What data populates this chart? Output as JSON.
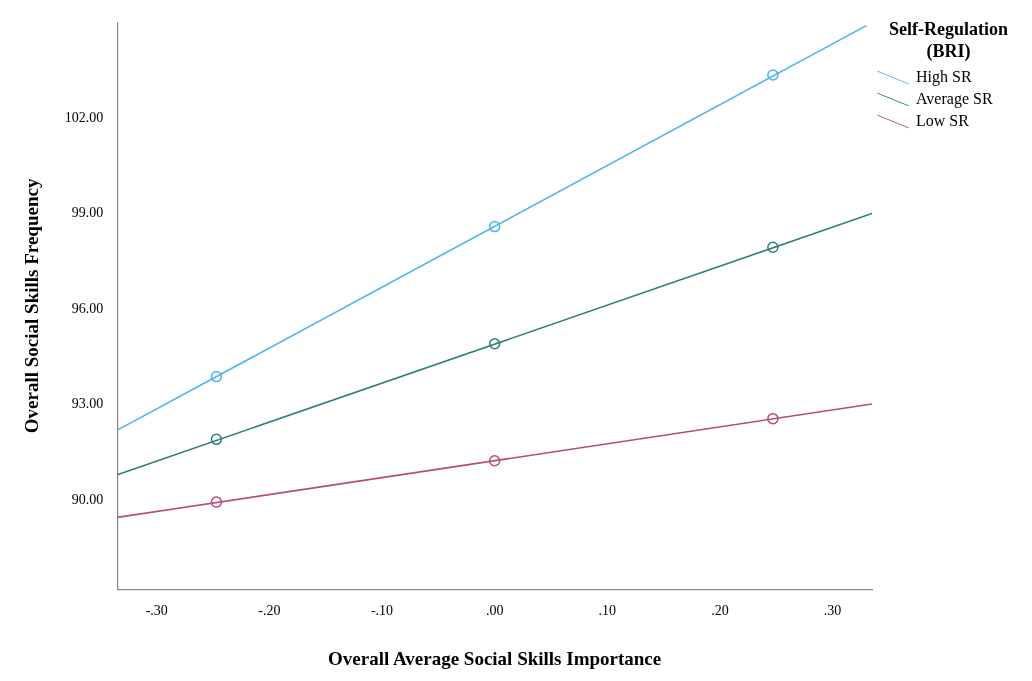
{
  "chart_data": {
    "type": "line",
    "xlabel": "Overall Average Social Skills Importance",
    "ylabel": "Overall Social Skills Frequency",
    "legend_title": "Self-Regulation (BRI)",
    "legend": "top right",
    "grid": false,
    "line_style": "solid",
    "xlim": [
      -0.335,
      0.335
    ],
    "xticks": [
      {
        "value": -0.3,
        "label": "-.30"
      },
      {
        "value": -0.2,
        "label": "-.20"
      },
      {
        "value": -0.1,
        "label": "-.10"
      },
      {
        "value": 0,
        "label": ".00"
      },
      {
        "value": 0.1,
        "label": ".10"
      },
      {
        "value": 0.2,
        "label": ".20"
      },
      {
        "value": 0.3,
        "label": ".30"
      }
    ],
    "ylim": [
      87.2,
      105
    ],
    "yticks": [
      {
        "value": 90,
        "label": "90.00"
      },
      {
        "value": 93,
        "label": "93.00"
      },
      {
        "value": 96,
        "label": "96.00"
      },
      {
        "value": 99,
        "label": "99.00"
      },
      {
        "value": 102,
        "label": "102.00"
      }
    ],
    "series": [
      {
        "name": "High SR",
        "marker": "none",
        "color": "#4db3f0",
        "x": [
          -0.335,
          0.33
        ],
        "values": [
          92.2,
          104.9
        ]
      },
      {
        "name": "Average SR",
        "marker": "none",
        "color": "#2e7d7a",
        "x": [
          -0.335,
          0.335
        ],
        "values": [
          90.8,
          99.0
        ]
      },
      {
        "name": "Low SR",
        "marker": "none",
        "color": "#b84a7a",
        "x": [
          -0.335,
          0.335
        ],
        "values": [
          89.46,
          93.02
        ]
      },
      {
        "type": "scatter",
        "marker": "circle",
        "color": "#4db3f0",
        "x": [
          -0.247,
          0,
          0.247
        ],
        "values": [
          93.88,
          98.59,
          103.35
        ]
      },
      {
        "type": "scatter",
        "marker": "circle",
        "color": "#2e7d7a",
        "x": [
          -0.247,
          0,
          0.247
        ],
        "values": [
          91.91,
          94.91,
          97.94
        ]
      },
      {
        "type": "scatter",
        "marker": "circle",
        "color": "#b84a7a",
        "x": [
          -0.247,
          0,
          0.247
        ],
        "values": [
          89.94,
          91.24,
          92.56
        ]
      }
    ]
  }
}
